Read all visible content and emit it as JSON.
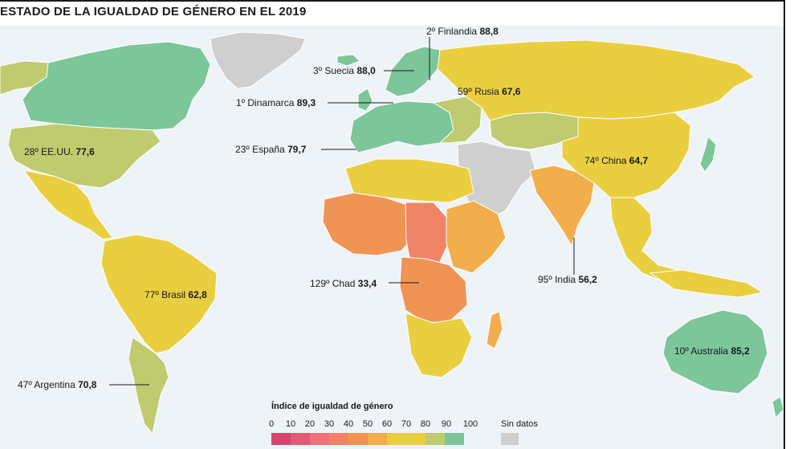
{
  "title": "ESTADO DE LA IGUALDAD DE GÉNERO EN EL 2019",
  "colors": {
    "water": "#eef3f8",
    "nodata": "#cfcfcf",
    "c90": "#45b6a8",
    "c80": "#7cc69a",
    "c70": "#bfcb6e",
    "c60": "#e9cf40",
    "c50": "#f2ae4c",
    "c40": "#f09455",
    "c30": "#f08466",
    "c20": "#ec7478",
    "c10": "#e35a74",
    "c0": "#d6456d"
  },
  "labels": [
    {
      "rank": "2º Finlandia",
      "value": "88,8"
    },
    {
      "rank": "3º Suecia",
      "value": "88,0"
    },
    {
      "rank": "59º Rusia",
      "value": "67,6"
    },
    {
      "rank": "1º Dinamarca",
      "value": "89,3"
    },
    {
      "rank": "28º EE.UU.",
      "value": "77,6"
    },
    {
      "rank": "23º España",
      "value": "79,7"
    },
    {
      "rank": "74º China",
      "value": "64,7"
    },
    {
      "rank": "77º Brasil",
      "value": "62,8"
    },
    {
      "rank": "129º Chad",
      "value": "33,4"
    },
    {
      "rank": "95º India",
      "value": "56,2"
    },
    {
      "rank": "10º Australia",
      "value": "85,2"
    },
    {
      "rank": "47º Argentina",
      "value": "70,8"
    }
  ],
  "legend": {
    "title": "Índice de igualdad de género",
    "ticks": [
      "0",
      "10",
      "20",
      "30",
      "40",
      "50",
      "60",
      "70",
      "80",
      "90",
      "100"
    ],
    "colors": [
      "#d6456d",
      "#e35a74",
      "#ec7478",
      "#f08466",
      "#f09455",
      "#f2ae4c",
      "#e9cf40",
      "#e9cf40",
      "#bfcb6e",
      "#7cc69a",
      "#45b6a8"
    ],
    "nodata_label": "Sin datos"
  }
}
